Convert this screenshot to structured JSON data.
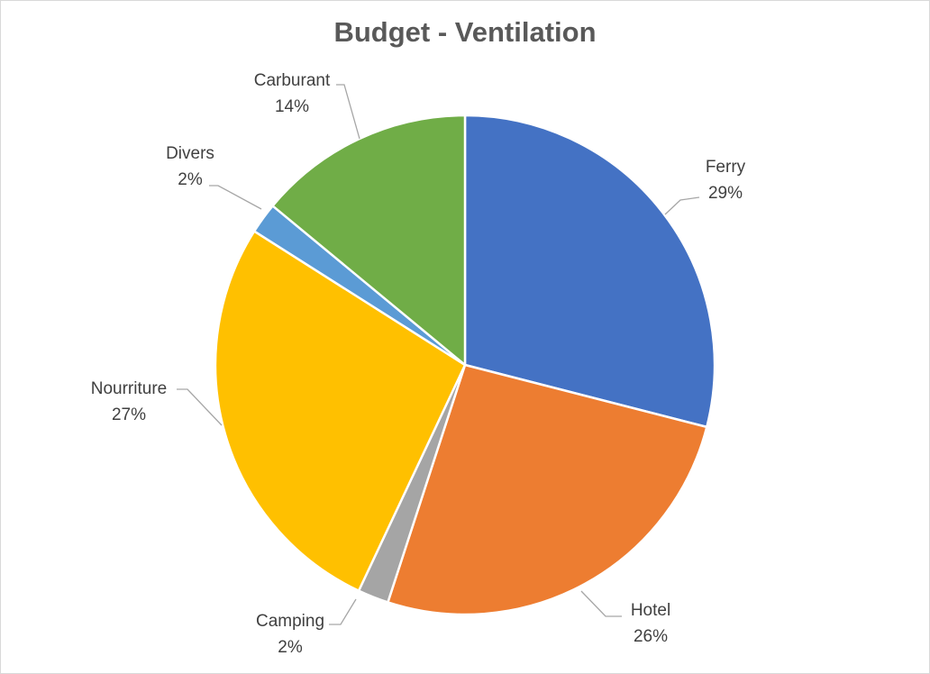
{
  "chart_data": {
    "type": "pie",
    "title": "Budget - Ventilation",
    "slices": [
      {
        "label": "Ferry",
        "value": 29,
        "display": "29%",
        "color": "#4472C4"
      },
      {
        "label": "Hotel",
        "value": 26,
        "display": "26%",
        "color": "#ED7D31"
      },
      {
        "label": "Camping",
        "value": 2,
        "display": "2%",
        "color": "#A5A5A5"
      },
      {
        "label": "Nourriture",
        "value": 27,
        "display": "27%",
        "color": "#FFC000"
      },
      {
        "label": "Divers",
        "value": 2,
        "display": "2%",
        "color": "#5B9BD5"
      },
      {
        "label": "Carburant",
        "value": 14,
        "display": "14%",
        "color": "#70AD47"
      }
    ],
    "start_angle": "12 o'clock",
    "direction": "clockwise",
    "legend": "none",
    "data_labels": "outside with leader lines"
  }
}
